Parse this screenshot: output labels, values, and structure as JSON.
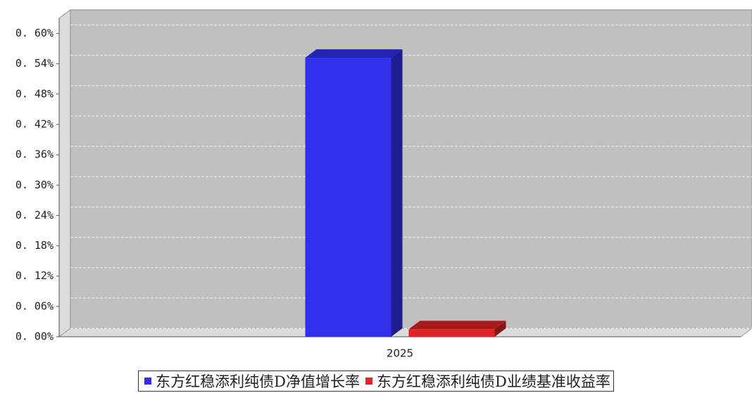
{
  "chart_data": {
    "type": "bar3d",
    "categories": [
      "2025"
    ],
    "series": [
      {
        "name": "东方红稳添利纯债D净值增长率",
        "color": "#3030ee",
        "values": [
          0.552
        ]
      },
      {
        "name": "东方红稳添利纯债D业绩基准收益率",
        "color": "#e02424",
        "values": [
          0.015
        ]
      }
    ],
    "ylim": [
      0,
      0.63
    ],
    "yticks": [
      {
        "value": 0,
        "label": "0. 00%"
      },
      {
        "value": 0.06,
        "label": "0. 06%"
      },
      {
        "value": 0.12,
        "label": "0. 12%"
      },
      {
        "value": 0.18,
        "label": "0. 18%"
      },
      {
        "value": 0.24,
        "label": "0. 24%"
      },
      {
        "value": 0.3,
        "label": "0. 30%"
      },
      {
        "value": 0.36,
        "label": "0. 36%"
      },
      {
        "value": 0.42,
        "label": "0. 42%"
      },
      {
        "value": 0.48,
        "label": "0. 48%"
      },
      {
        "value": 0.54,
        "label": "0. 54%"
      },
      {
        "value": 0.6,
        "label": "0. 60%"
      }
    ],
    "grid": true
  }
}
